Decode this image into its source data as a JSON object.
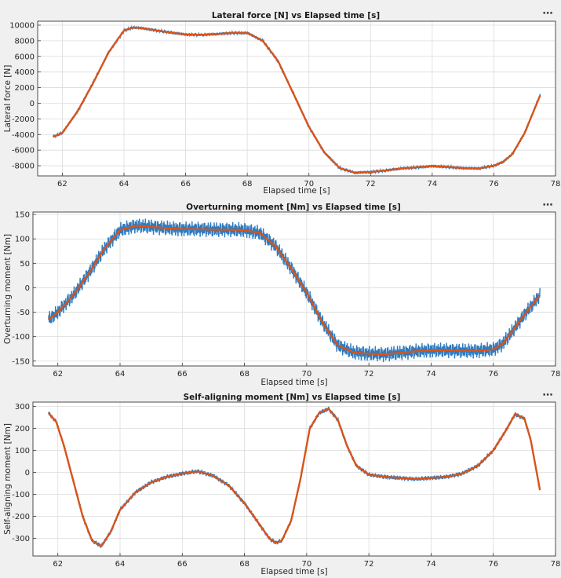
{
  "toolbar_icon": "more-options-icon",
  "colors": {
    "raw": "#2f7cc0",
    "filtered": "#d95319"
  },
  "chart_data": [
    {
      "type": "line",
      "title": "Lateral force [N] vs Elapsed time [s]",
      "xlabel": "Elapsed time [s]",
      "ylabel": "Lateral force [N]",
      "xlim": [
        61.2,
        78.0
      ],
      "ylim": [
        -9300,
        10500
      ],
      "xticks": [
        62,
        64,
        66,
        68,
        70,
        72,
        74,
        76,
        78
      ],
      "yticks": [
        -8000,
        -6000,
        -4000,
        -2000,
        0,
        2000,
        4000,
        6000,
        8000,
        10000
      ],
      "xtick_labels": [
        "62",
        "64",
        "66",
        "68",
        "70",
        "72",
        "74",
        "76",
        "78"
      ],
      "ytick_labels": [
        "-8000",
        "-6000",
        "-4000",
        "-2000",
        "0",
        "2000",
        "4000",
        "6000",
        "8000",
        "10000"
      ],
      "grid": true,
      "noise_amplitude": 150,
      "series": [
        {
          "role": "raw",
          "x": [
            61.7,
            62.0,
            62.5,
            63.0,
            63.5,
            64.0,
            64.3,
            64.6,
            65.0,
            65.5,
            66.0,
            66.5,
            67.0,
            67.5,
            68.0,
            68.5,
            69.0,
            69.5,
            70.0,
            70.5,
            71.0,
            71.5,
            72.0,
            72.5,
            73.0,
            73.5,
            74.0,
            74.5,
            75.0,
            75.5,
            76.0,
            76.3,
            76.6,
            77.0,
            77.5
          ],
          "values": [
            -4300,
            -3800,
            -1000,
            2600,
            6500,
            9300,
            9700,
            9600,
            9350,
            9050,
            8800,
            8750,
            8850,
            9000,
            9000,
            8000,
            5400,
            1200,
            -3000,
            -6300,
            -8300,
            -8900,
            -8800,
            -8600,
            -8350,
            -8200,
            -8050,
            -8150,
            -8300,
            -8350,
            -8000,
            -7500,
            -6500,
            -3800,
            1000
          ]
        },
        {
          "role": "filtered",
          "x": [
            61.7,
            62.0,
            62.5,
            63.0,
            63.5,
            64.0,
            64.3,
            64.6,
            65.0,
            65.5,
            66.0,
            66.5,
            67.0,
            67.5,
            68.0,
            68.5,
            69.0,
            69.5,
            70.0,
            70.5,
            71.0,
            71.5,
            72.0,
            72.5,
            73.0,
            73.5,
            74.0,
            74.5,
            75.0,
            75.5,
            76.0,
            76.3,
            76.6,
            77.0,
            77.5
          ],
          "values": [
            -4300,
            -3800,
            -1000,
            2600,
            6500,
            9300,
            9700,
            9600,
            9350,
            9050,
            8800,
            8750,
            8850,
            9000,
            9000,
            8000,
            5400,
            1200,
            -3000,
            -6300,
            -8300,
            -8900,
            -8800,
            -8600,
            -8350,
            -8200,
            -8050,
            -8150,
            -8300,
            -8350,
            -8000,
            -7500,
            -6500,
            -3800,
            1000
          ]
        }
      ]
    },
    {
      "type": "line",
      "title": "Overturning moment [Nm] vs Elapsed time [s]",
      "xlabel": "Elapsed time [s]",
      "ylabel": "Overturning moment [Nm]",
      "xlim": [
        61.2,
        78.0
      ],
      "ylim": [
        -160,
        155
      ],
      "xticks": [
        62,
        64,
        66,
        68,
        70,
        72,
        74,
        76,
        78
      ],
      "yticks": [
        -150,
        -100,
        -50,
        0,
        50,
        100,
        150
      ],
      "xtick_labels": [
        "62",
        "64",
        "66",
        "68",
        "70",
        "72",
        "74",
        "76",
        "78"
      ],
      "ytick_labels": [
        "-150",
        "-100",
        "-50",
        "0",
        "50",
        "100",
        "150"
      ],
      "grid": true,
      "noise_amplitude": 12,
      "series": [
        {
          "role": "raw",
          "x": [
            61.7,
            62.0,
            62.5,
            63.0,
            63.5,
            64.0,
            64.5,
            65.0,
            65.5,
            66.0,
            66.5,
            67.0,
            67.5,
            68.0,
            68.5,
            69.0,
            69.5,
            70.0,
            70.5,
            71.0,
            71.5,
            72.0,
            72.5,
            73.0,
            73.5,
            74.0,
            74.5,
            75.0,
            75.5,
            76.0,
            76.3,
            76.6,
            77.0,
            77.5
          ],
          "values": [
            -65,
            -50,
            -15,
            30,
            80,
            118,
            127,
            125,
            122,
            120,
            120,
            119,
            119,
            118,
            112,
            85,
            40,
            -10,
            -70,
            -118,
            -132,
            -135,
            -136,
            -133,
            -130,
            -128,
            -128,
            -129,
            -129,
            -126,
            -115,
            -90,
            -55,
            -15
          ]
        },
        {
          "role": "filtered",
          "x": [
            61.7,
            62.0,
            62.5,
            63.0,
            63.5,
            64.0,
            64.5,
            65.0,
            65.5,
            66.0,
            66.5,
            67.0,
            67.5,
            68.0,
            68.5,
            69.0,
            69.5,
            70.0,
            70.5,
            71.0,
            71.5,
            72.0,
            72.5,
            73.0,
            73.5,
            74.0,
            74.5,
            75.0,
            75.5,
            76.0,
            76.3,
            76.6,
            77.0,
            77.5
          ],
          "values": [
            -65,
            -50,
            -15,
            30,
            80,
            118,
            127,
            125,
            122,
            120,
            120,
            119,
            119,
            118,
            112,
            85,
            40,
            -10,
            -70,
            -118,
            -132,
            -135,
            -136,
            -133,
            -130,
            -128,
            -128,
            -129,
            -129,
            -126,
            -115,
            -90,
            -55,
            -15
          ]
        }
      ]
    },
    {
      "type": "line",
      "title": "Self-aligning moment [Nm] vs Elapsed time [s]",
      "xlabel": "Elapsed time [s]",
      "ylabel": "Self-aligning moment [Nm]",
      "xlim": [
        61.2,
        78.0
      ],
      "ylim": [
        -380,
        320
      ],
      "xticks": [
        62,
        64,
        66,
        68,
        70,
        72,
        74,
        76,
        78
      ],
      "yticks": [
        -300,
        -200,
        -100,
        0,
        100,
        200,
        300
      ],
      "xtick_labels": [
        "62",
        "64",
        "66",
        "68",
        "70",
        "72",
        "74",
        "76",
        "78"
      ],
      "ytick_labels": [
        "-300",
        "-200",
        "-100",
        "0",
        "100",
        "200",
        "300"
      ],
      "grid": true,
      "noise_amplitude": 8,
      "series": [
        {
          "role": "raw",
          "x": [
            61.7,
            61.95,
            62.2,
            62.5,
            62.8,
            63.1,
            63.4,
            63.7,
            64.0,
            64.5,
            65.0,
            65.5,
            66.0,
            66.5,
            67.0,
            67.5,
            68.0,
            68.5,
            68.8,
            69.0,
            69.2,
            69.5,
            69.8,
            70.1,
            70.4,
            70.7,
            71.0,
            71.3,
            71.6,
            72.0,
            72.5,
            73.0,
            73.5,
            74.0,
            74.5,
            75.0,
            75.5,
            76.0,
            76.4,
            76.7,
            77.0,
            77.2,
            77.5
          ],
          "values": [
            270,
            230,
            120,
            -40,
            -200,
            -310,
            -335,
            -270,
            -170,
            -90,
            -45,
            -20,
            -5,
            5,
            -15,
            -60,
            -140,
            -240,
            -300,
            -320,
            -310,
            -220,
            -30,
            200,
            270,
            290,
            240,
            120,
            30,
            -10,
            -20,
            -25,
            -30,
            -25,
            -20,
            -5,
            30,
            100,
            190,
            265,
            245,
            150,
            -80
          ]
        },
        {
          "role": "filtered",
          "x": [
            61.7,
            61.95,
            62.2,
            62.5,
            62.8,
            63.1,
            63.4,
            63.7,
            64.0,
            64.5,
            65.0,
            65.5,
            66.0,
            66.5,
            67.0,
            67.5,
            68.0,
            68.5,
            68.8,
            69.0,
            69.2,
            69.5,
            69.8,
            70.1,
            70.4,
            70.7,
            71.0,
            71.3,
            71.6,
            72.0,
            72.5,
            73.0,
            73.5,
            74.0,
            74.5,
            75.0,
            75.5,
            76.0,
            76.4,
            76.7,
            77.0,
            77.2,
            77.5
          ],
          "values": [
            270,
            230,
            120,
            -40,
            -200,
            -310,
            -335,
            -270,
            -170,
            -90,
            -45,
            -20,
            -5,
            5,
            -15,
            -60,
            -140,
            -240,
            -300,
            -320,
            -310,
            -220,
            -30,
            200,
            270,
            290,
            240,
            120,
            30,
            -10,
            -20,
            -25,
            -30,
            -25,
            -20,
            -5,
            30,
            100,
            190,
            265,
            245,
            150,
            -80
          ]
        }
      ]
    }
  ]
}
